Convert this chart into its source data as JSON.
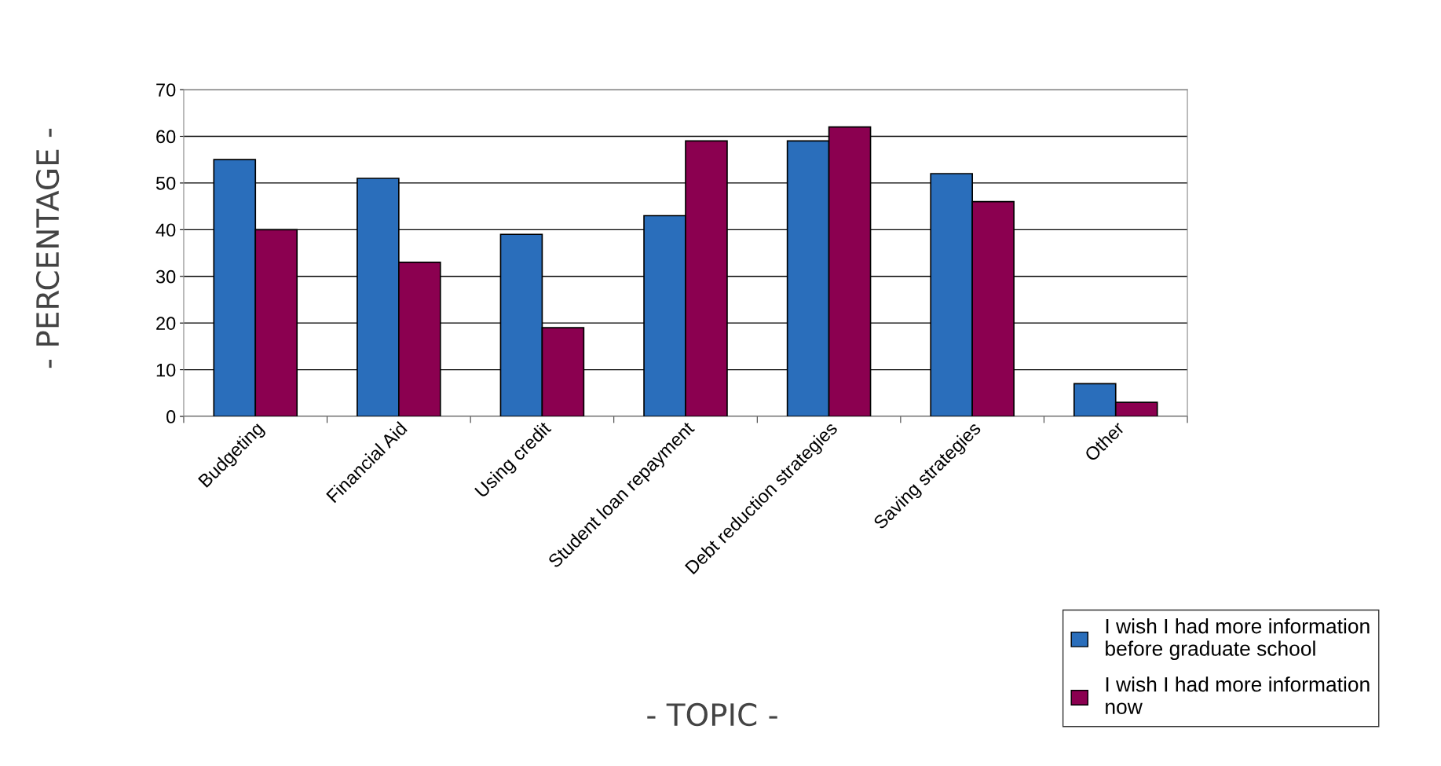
{
  "chart_data": {
    "type": "bar",
    "xlabel": "- TOPIC -",
    "ylabel": "- PERCENTAGE -",
    "categories": [
      "Budgeting",
      "Financial Aid",
      "Using credit",
      "Student loan repayment",
      "Debt reduction strategies",
      "Saving strategies",
      "Other"
    ],
    "series": [
      {
        "name": "I wish I had more information\nbefore graduate school",
        "color": "#2a6ebb",
        "values": [
          55,
          51,
          39,
          43,
          59,
          52,
          7
        ]
      },
      {
        "name": "I wish I had more information\nnow",
        "color": "#8b0050",
        "values": [
          40,
          33,
          19,
          59,
          62,
          46,
          3
        ]
      }
    ],
    "ylim": [
      0,
      70
    ],
    "yticks": [
      0,
      10,
      20,
      30,
      40,
      50,
      60,
      70
    ],
    "grid": "y",
    "legend": "bottom right"
  }
}
